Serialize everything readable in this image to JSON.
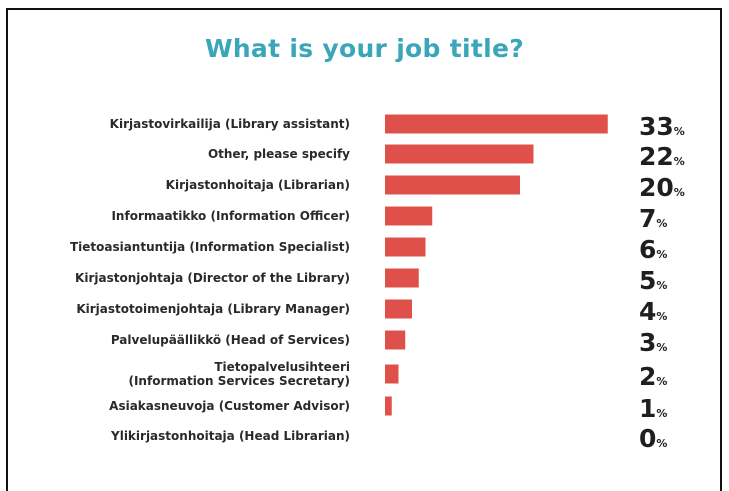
{
  "chart_data": {
    "type": "bar",
    "orientation": "horizontal",
    "title": "What is your job title?",
    "categories": [
      "Kirjastovirkailija (Library assistant)",
      "Other, please specify",
      "Kirjastonhoitaja (Librarian)",
      "Informaatikko (Information Officer)",
      "Tietoasiantuntija (Information Specialist)",
      "Kirjastonjohtaja (Director of the Library)",
      "Kirjastotoimenjohtaja (Library Manager)",
      "Palvelupäällikkö (Head of Services)",
      "Tietopalvelusihteeri\n(Information Services Secretary)",
      "Asiakasneuvoja (Customer Advisor)",
      "Ylikirjastonhoitaja (Head Librarian)"
    ],
    "values": [
      33,
      22,
      20,
      7,
      6,
      5,
      4,
      3,
      2,
      1,
      0
    ],
    "value_unit": "%",
    "bar_color": "#e0504a",
    "title_color": "#3aa6b9",
    "grid": false,
    "legend": "none"
  }
}
